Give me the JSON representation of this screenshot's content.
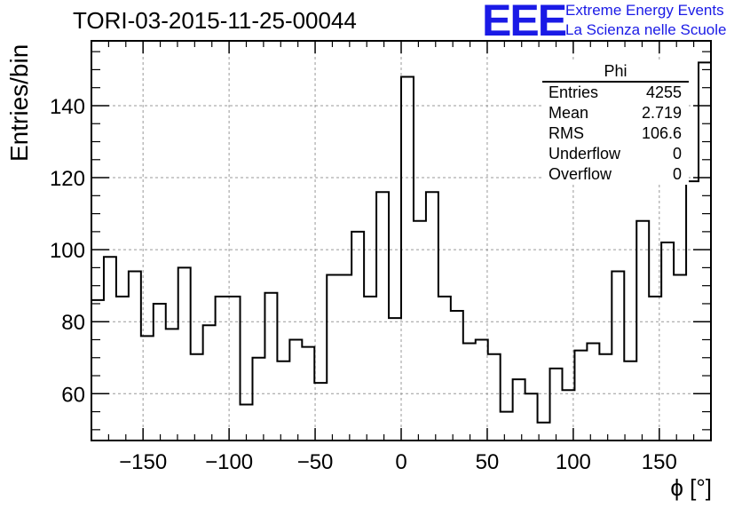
{
  "header": {
    "title": "TORI-03-2015-11-25-00044"
  },
  "logo": {
    "mark": "EEE",
    "line1": "Extreme Energy Events",
    "line2": "La Scienza nelle Scuole",
    "color": "#1a1ae6"
  },
  "stats_box": {
    "name": "Phi",
    "rows": [
      {
        "label": "Entries",
        "value": "4255"
      },
      {
        "label": "Mean",
        "value": "2.719"
      },
      {
        "label": "RMS",
        "value": "106.6"
      },
      {
        "label": "Underflow",
        "value": "0"
      },
      {
        "label": "Overflow",
        "value": "0"
      }
    ]
  },
  "chart_data": {
    "type": "bar",
    "style": "step-histogram",
    "title": "TORI-03-2015-11-25-00044",
    "xlabel": "ϕ [°]",
    "ylabel": "Entries/bin",
    "xlim": [
      -180,
      180
    ],
    "ylim": [
      47,
      158
    ],
    "bin_width": 7.2,
    "bin_edges_start": -180,
    "values": [
      86,
      98,
      87,
      94,
      76,
      85,
      78,
      95,
      71,
      79,
      87,
      87,
      57,
      70,
      88,
      69,
      75,
      73,
      63,
      93,
      93,
      105,
      87,
      116,
      81,
      148,
      108,
      116,
      87,
      83,
      74,
      75,
      71,
      55,
      64,
      60,
      52,
      67,
      61,
      72,
      74,
      71,
      94,
      69,
      108,
      87,
      102,
      93,
      119,
      152
    ],
    "x_ticks": [
      -150,
      -100,
      -50,
      0,
      50,
      100,
      150
    ],
    "x_tick_labels": [
      "−150",
      "−100",
      "−50",
      "0",
      "50",
      "100",
      "150"
    ],
    "y_ticks": [
      60,
      80,
      100,
      120,
      140
    ],
    "y_tick_labels": [
      "60",
      "80",
      "100",
      "120",
      "140"
    ],
    "grid": true,
    "legend": "none",
    "line_color": "#000000"
  }
}
